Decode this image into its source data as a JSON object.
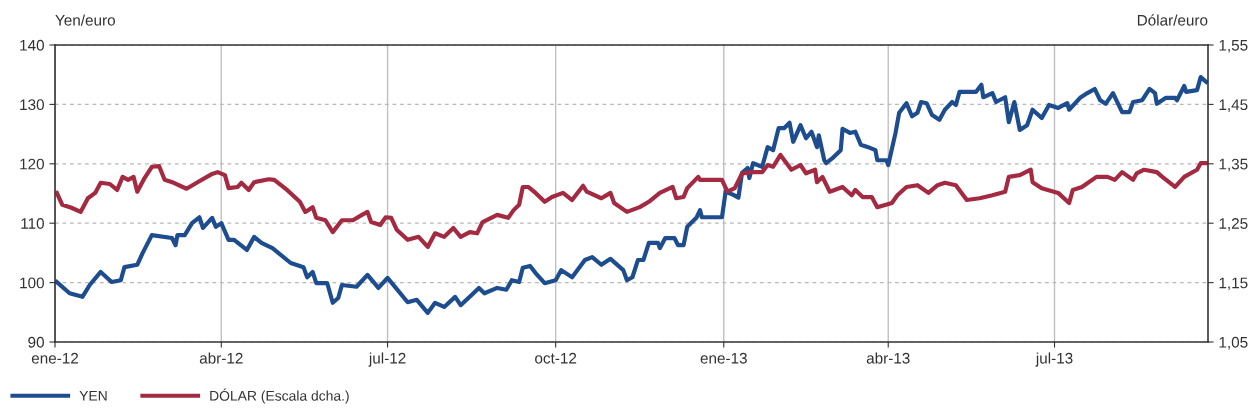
{
  "chart_data": {
    "type": "line",
    "ylabel": "Yen/euro",
    "y2label": "Dólar/euro",
    "xlim": [
      "2012-01-01",
      "2013-09-23"
    ],
    "xticks": [
      {
        "value": "2012-01-01",
        "label": "ene-12"
      },
      {
        "value": "2012-04-01",
        "label": "abr-12"
      },
      {
        "value": "2012-07-01",
        "label": "jul-12"
      },
      {
        "value": "2012-10-01",
        "label": "oct-12"
      },
      {
        "value": "2013-01-01",
        "label": "ene-13"
      },
      {
        "value": "2013-04-01",
        "label": "abr-13"
      },
      {
        "value": "2013-07-01",
        "label": "jul-13"
      }
    ],
    "ylim": [
      90,
      140
    ],
    "yticks": [
      90,
      100,
      110,
      120,
      130,
      140
    ],
    "y2lim": [
      1.05,
      1.55
    ],
    "y2ticks": [
      {
        "value": 1.05,
        "label": "1,05"
      },
      {
        "value": 1.15,
        "label": "1,15"
      },
      {
        "value": 1.25,
        "label": "1,25"
      },
      {
        "value": 1.35,
        "label": "1,35"
      },
      {
        "value": 1.45,
        "label": "1,45"
      },
      {
        "value": 1.55,
        "label": "1,55"
      }
    ],
    "grid": true,
    "legend": "bottom left",
    "marker": "none",
    "line_style": "solid",
    "series": [
      {
        "name": "YEN",
        "color": "#1d4d8e",
        "x": [
          "2012-01-02",
          "2012-01-09",
          "2012-01-16",
          "2012-01-20",
          "2012-01-26",
          "2012-02-01",
          "2012-02-06",
          "2012-02-08",
          "2012-02-15",
          "2012-02-18",
          "2012-02-23",
          "2012-03-05",
          "2012-03-07",
          "2012-03-08",
          "2012-03-12",
          "2012-03-16",
          "2012-03-20",
          "2012-03-22",
          "2012-03-27",
          "2012-03-29",
          "2012-04-01",
          "2012-04-05",
          "2012-04-08",
          "2012-04-15",
          "2012-04-19",
          "2012-04-23",
          "2012-04-29",
          "2012-05-09",
          "2012-05-16",
          "2012-05-18",
          "2012-05-21",
          "2012-05-23",
          "2012-05-29",
          "2012-06-01",
          "2012-06-04",
          "2012-06-06",
          "2012-06-14",
          "2012-06-20",
          "2012-06-26",
          "2012-07-01",
          "2012-07-12",
          "2012-07-17",
          "2012-07-23",
          "2012-07-27",
          "2012-08-01",
          "2012-08-07",
          "2012-08-10",
          "2012-08-16",
          "2012-08-20",
          "2012-08-23",
          "2012-08-30",
          "2012-09-04",
          "2012-09-07",
          "2012-09-11",
          "2012-09-13",
          "2012-09-17",
          "2012-09-20",
          "2012-09-25",
          "2012-10-01",
          "2012-10-04",
          "2012-10-10",
          "2012-10-17",
          "2012-10-21",
          "2012-10-26",
          "2012-10-31",
          "2012-11-07",
          "2012-11-09",
          "2012-11-12",
          "2012-11-15",
          "2012-11-18",
          "2012-11-21",
          "2012-11-26",
          "2012-11-27",
          "2012-11-30",
          "2012-12-05",
          "2012-12-07",
          "2012-12-10",
          "2012-12-12",
          "2012-12-17",
          "2012-12-19",
          "2012-12-20",
          "2012-12-31",
          "2013-01-02",
          "2013-01-06",
          "2013-01-09",
          "2013-01-11",
          "2013-01-14",
          "2013-01-15",
          "2013-01-17",
          "2013-01-22",
          "2013-01-25",
          "2013-01-28",
          "2013-01-31",
          "2013-02-03",
          "2013-02-06",
          "2013-02-08",
          "2013-02-12",
          "2013-02-15",
          "2013-02-18",
          "2013-02-21",
          "2013-02-22",
          "2013-02-25",
          "2013-02-26",
          "2013-03-02",
          "2013-03-06",
          "2013-03-07",
          "2013-03-11",
          "2013-03-14",
          "2013-03-17",
          "2013-03-21",
          "2013-03-25",
          "2013-03-26",
          "2013-03-31",
          "2013-04-01",
          "2013-04-05",
          "2013-04-07",
          "2013-04-11",
          "2013-04-14",
          "2013-04-17",
          "2013-04-19",
          "2013-04-22",
          "2013-04-25",
          "2013-04-29",
          "2013-05-02",
          "2013-05-06",
          "2013-05-08",
          "2013-05-10",
          "2013-05-19",
          "2013-05-22",
          "2013-05-23",
          "2013-05-28",
          "2013-05-30",
          "2013-06-04",
          "2013-06-06",
          "2013-06-09",
          "2013-06-12",
          "2013-06-16",
          "2013-06-19",
          "2013-06-24",
          "2013-06-28",
          "2013-07-03",
          "2013-07-08",
          "2013-07-09",
          "2013-07-15",
          "2013-07-19",
          "2013-07-23",
          "2013-07-26",
          "2013-07-29",
          "2013-08-02",
          "2013-08-07",
          "2013-08-11",
          "2013-08-13",
          "2013-08-18",
          "2013-08-22",
          "2013-08-25",
          "2013-08-26",
          "2013-08-31",
          "2013-09-05",
          "2013-09-06",
          "2013-09-10",
          "2013-09-11",
          "2013-09-17",
          "2013-09-19",
          "2013-09-22"
        ],
        "values": [
          100.1,
          98.2,
          97.6,
          99.6,
          101.8,
          100.1,
          100.4,
          102.6,
          103.0,
          105.0,
          108.0,
          107.5,
          106.3,
          108.0,
          108.0,
          110.0,
          111.0,
          109.2,
          110.9,
          109.4,
          110.0,
          107.2,
          107.2,
          105.5,
          107.7,
          106.7,
          105.8,
          103.3,
          102.6,
          100.9,
          101.8,
          99.9,
          99.9,
          96.6,
          97.4,
          99.6,
          99.3,
          101.3,
          99.1,
          100.8,
          96.7,
          97.1,
          94.9,
          96.6,
          95.9,
          97.6,
          96.2,
          97.9,
          99.1,
          98.2,
          99.1,
          98.8,
          100.4,
          100.1,
          102.5,
          102.8,
          101.6,
          99.9,
          100.4,
          102.1,
          100.9,
          103.8,
          104.3,
          103.0,
          104.0,
          102.1,
          100.4,
          100.9,
          103.8,
          103.8,
          106.7,
          106.7,
          105.8,
          107.5,
          107.5,
          106.3,
          106.3,
          109.4,
          110.9,
          112.2,
          111.0,
          111.0,
          115.3,
          114.8,
          114.3,
          118.5,
          119.3,
          117.6,
          120.1,
          119.5,
          122.8,
          122.3,
          126.0,
          126.0,
          126.9,
          123.7,
          126.5,
          124.3,
          125.4,
          122.8,
          124.8,
          120.6,
          120.1,
          121.1,
          122.3,
          125.9,
          125.2,
          125.4,
          123.2,
          122.8,
          122.3,
          120.6,
          120.6,
          119.8,
          125.2,
          128.6,
          130.2,
          128.0,
          128.6,
          130.4,
          130.2,
          128.2,
          127.4,
          129.1,
          130.4,
          129.9,
          132.1,
          132.1,
          133.3,
          131.2,
          131.9,
          130.4,
          131.2,
          127.0,
          130.4,
          125.7,
          126.5,
          129.1,
          127.7,
          129.9,
          129.4,
          130.2,
          129.1,
          131.1,
          131.9,
          132.6,
          130.7,
          130.1,
          131.9,
          128.7,
          128.7,
          130.4,
          130.7,
          132.6,
          131.9,
          130.1,
          131.1,
          131.1,
          130.7,
          133.1,
          132.1,
          132.4,
          134.6,
          133.8
        ]
      },
      {
        "name": "DÓLAR (Escala dcha.)",
        "color": "#a32a40",
        "axis": "y2",
        "x": [
          "2012-01-02",
          "2012-01-05",
          "2012-01-10",
          "2012-01-15",
          "2012-01-19",
          "2012-01-23",
          "2012-01-26",
          "2012-01-31",
          "2012-02-04",
          "2012-02-07",
          "2012-02-10",
          "2012-02-13",
          "2012-02-15",
          "2012-02-19",
          "2012-02-23",
          "2012-02-27",
          "2012-03-01",
          "2012-03-06",
          "2012-03-13",
          "2012-03-19",
          "2012-03-27",
          "2012-03-30",
          "2012-04-03",
          "2012-04-05",
          "2012-04-10",
          "2012-04-12",
          "2012-04-16",
          "2012-04-19",
          "2012-04-27",
          "2012-04-30",
          "2012-05-07",
          "2012-05-14",
          "2012-05-17",
          "2012-05-21",
          "2012-05-23",
          "2012-05-28",
          "2012-06-01",
          "2012-06-06",
          "2012-06-12",
          "2012-06-17",
          "2012-06-20",
          "2012-06-22",
          "2012-06-27",
          "2012-06-30",
          "2012-07-03",
          "2012-07-06",
          "2012-07-12",
          "2012-07-18",
          "2012-07-23",
          "2012-07-27",
          "2012-08-01",
          "2012-08-06",
          "2012-08-10",
          "2012-08-15",
          "2012-08-19",
          "2012-08-22",
          "2012-08-30",
          "2012-09-05",
          "2012-09-08",
          "2012-09-11",
          "2012-09-13",
          "2012-09-16",
          "2012-09-20",
          "2012-09-25",
          "2012-09-29",
          "2012-10-05",
          "2012-10-10",
          "2012-10-16",
          "2012-10-18",
          "2012-10-26",
          "2012-10-31",
          "2012-11-02",
          "2012-11-09",
          "2012-11-16",
          "2012-11-21",
          "2012-11-27",
          "2012-12-04",
          "2012-12-06",
          "2012-12-10",
          "2012-12-12",
          "2012-12-18",
          "2012-12-19",
          "2012-12-31",
          "2013-01-03",
          "2013-01-07",
          "2013-01-11",
          "2013-01-17",
          "2013-01-22",
          "2013-01-25",
          "2013-01-28",
          "2013-02-01",
          "2013-02-07",
          "2013-02-12",
          "2013-02-15",
          "2013-02-20",
          "2013-02-21",
          "2013-02-24",
          "2013-02-28",
          "2013-03-07",
          "2013-03-12",
          "2013-03-14",
          "2013-03-18",
          "2013-03-23",
          "2013-03-26",
          "2013-04-03",
          "2013-04-06",
          "2013-04-11",
          "2013-04-17",
          "2013-04-23",
          "2013-04-28",
          "2013-05-02",
          "2013-05-08",
          "2013-05-14",
          "2013-05-21",
          "2013-05-28",
          "2013-06-04",
          "2013-06-06",
          "2013-06-12",
          "2013-06-18",
          "2013-06-19",
          "2013-06-24",
          "2013-07-03",
          "2013-07-09",
          "2013-07-11",
          "2013-07-16",
          "2013-07-24",
          "2013-07-30",
          "2013-08-03",
          "2013-08-07",
          "2013-08-13",
          "2013-08-15",
          "2013-08-19",
          "2013-08-26",
          "2013-08-29",
          "2013-09-05",
          "2013-09-10",
          "2013-09-17",
          "2013-09-19",
          "2013-09-22"
        ],
        "values": [
          1.301,
          1.281,
          1.276,
          1.269,
          1.292,
          1.301,
          1.318,
          1.316,
          1.306,
          1.328,
          1.323,
          1.328,
          1.303,
          1.326,
          1.345,
          1.346,
          1.323,
          1.318,
          1.308,
          1.319,
          1.333,
          1.336,
          1.331,
          1.309,
          1.311,
          1.318,
          1.306,
          1.319,
          1.324,
          1.323,
          1.306,
          1.286,
          1.269,
          1.277,
          1.259,
          1.255,
          1.235,
          1.255,
          1.255,
          1.264,
          1.269,
          1.252,
          1.247,
          1.26,
          1.259,
          1.239,
          1.222,
          1.227,
          1.21,
          1.233,
          1.227,
          1.242,
          1.227,
          1.235,
          1.233,
          1.252,
          1.264,
          1.259,
          1.272,
          1.281,
          1.311,
          1.311,
          1.301,
          1.286,
          1.294,
          1.301,
          1.289,
          1.313,
          1.303,
          1.292,
          1.301,
          1.284,
          1.269,
          1.277,
          1.286,
          1.301,
          1.311,
          1.292,
          1.294,
          1.309,
          1.328,
          1.323,
          1.323,
          1.303,
          1.309,
          1.334,
          1.336,
          1.336,
          1.348,
          1.345,
          1.365,
          1.34,
          1.348,
          1.334,
          1.34,
          1.319,
          1.328,
          1.303,
          1.311,
          1.297,
          1.306,
          1.294,
          1.294,
          1.277,
          1.284,
          1.297,
          1.311,
          1.314,
          1.301,
          1.314,
          1.318,
          1.314,
          1.289,
          1.292,
          1.297,
          1.303,
          1.328,
          1.331,
          1.34,
          1.319,
          1.309,
          1.301,
          1.284,
          1.306,
          1.311,
          1.328,
          1.328,
          1.323,
          1.336,
          1.323,
          1.334,
          1.34,
          1.336,
          1.328,
          1.311,
          1.328,
          1.34,
          1.351,
          1.351
        ]
      }
    ]
  }
}
